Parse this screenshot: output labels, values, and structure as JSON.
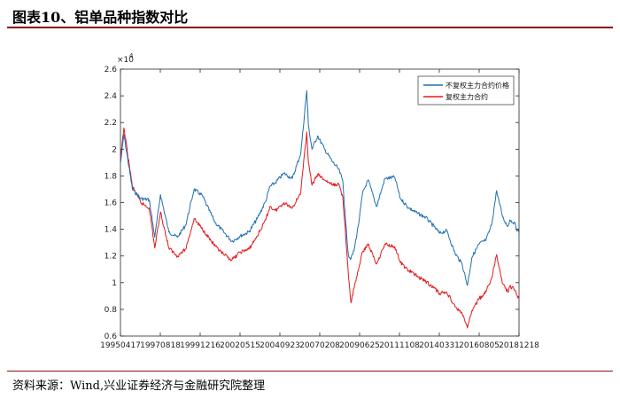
{
  "header": {
    "title": "图表10、铝单品种指数对比"
  },
  "footer": {
    "source": "资料来源：Wind,兴业证券经济与金融研究院整理"
  },
  "chart_data": {
    "type": "line",
    "title": "",
    "xlabel": "",
    "ylabel": "",
    "y_multiplier_label": "×10",
    "y_multiplier_exponent": "4",
    "ylim": [
      0.6,
      2.6
    ],
    "yticks": [
      0.6,
      0.8,
      1,
      1.2,
      1.4,
      1.6,
      1.8,
      2,
      2.2,
      2.4,
      2.6
    ],
    "ytick_labels": [
      "0.6",
      "0.8",
      "1",
      "1.2",
      "1.4",
      "1.6",
      "1.8",
      "2",
      "2.2",
      "2.4",
      "2.6"
    ],
    "xlim": [
      "1995-04-17",
      "2018-12-18"
    ],
    "xtick_labels": [
      "19950417",
      "19970818",
      "19991216",
      "20020515",
      "20040923",
      "20070208",
      "20090625",
      "20111108",
      "20140331",
      "20160805",
      "20181218"
    ],
    "grid": false,
    "legend_position": "top-right",
    "colors": {
      "series1": "#1f6fb4",
      "series2": "#e3191c"
    },
    "series": [
      {
        "name": "不复权主力合约价格",
        "x": [
          "1995-04-17",
          "1995-07-01",
          "1996-01-01",
          "1996-07-01",
          "1997-01-01",
          "1997-05-01",
          "1997-09-01",
          "1998-03-01",
          "1998-09-01",
          "1999-03-01",
          "1999-09-01",
          "2000-03-01",
          "2000-06-01",
          "2000-12-01",
          "2001-06-01",
          "2001-12-01",
          "2002-06-01",
          "2002-12-01",
          "2003-06-01",
          "2003-12-01",
          "2004-03-01",
          "2004-07-01",
          "2005-01-01",
          "2005-07-01",
          "2006-01-01",
          "2006-05-10",
          "2006-06-15",
          "2006-09-01",
          "2007-01-01",
          "2007-06-01",
          "2007-12-01",
          "2008-04-01",
          "2008-07-01",
          "2008-09-01",
          "2008-11-01",
          "2008-12-25",
          "2009-03-01",
          "2009-06-25",
          "2009-09-01",
          "2010-01-01",
          "2010-07-01",
          "2011-01-01",
          "2011-08-01",
          "2011-12-01",
          "2012-06-01",
          "2012-12-01",
          "2013-06-01",
          "2013-12-01",
          "2014-03-31",
          "2014-09-01",
          "2015-03-01",
          "2015-08-01",
          "2015-11-25",
          "2016-03-01",
          "2016-08-05",
          "2017-01-01",
          "2017-05-01",
          "2017-08-20",
          "2017-10-15",
          "2018-01-01",
          "2018-04-15",
          "2018-06-01",
          "2018-09-01",
          "2018-12-18"
        ],
        "values": [
          18900,
          21100,
          17000,
          16300,
          16200,
          13400,
          16600,
          13800,
          13400,
          14300,
          17000,
          16500,
          15800,
          14500,
          13800,
          13100,
          13500,
          13800,
          14800,
          16100,
          17200,
          17500,
          18200,
          17800,
          19700,
          24400,
          21800,
          20000,
          21000,
          20000,
          19000,
          18500,
          17600,
          14500,
          12000,
          11800,
          12400,
          14800,
          16700,
          17700,
          15700,
          17800,
          17900,
          16300,
          15600,
          15200,
          14900,
          14200,
          13700,
          13900,
          12200,
          11400,
          9800,
          11900,
          12900,
          13200,
          14300,
          16900,
          16000,
          14900,
          14200,
          14700,
          14500,
          13700
        ]
      },
      {
        "name": "复权主力合约",
        "x": [
          "1995-04-17",
          "1995-07-01",
          "1996-01-01",
          "1996-07-01",
          "1997-01-01",
          "1997-05-01",
          "1997-09-01",
          "1998-03-01",
          "1998-09-01",
          "1999-03-01",
          "1999-09-01",
          "2000-03-01",
          "2000-06-01",
          "2000-12-01",
          "2001-06-01",
          "2001-12-01",
          "2002-06-01",
          "2002-12-01",
          "2003-06-01",
          "2003-12-01",
          "2004-03-01",
          "2004-07-01",
          "2005-01-01",
          "2005-07-01",
          "2006-01-01",
          "2006-05-10",
          "2006-06-15",
          "2006-09-01",
          "2007-01-01",
          "2007-06-01",
          "2007-12-01",
          "2008-04-01",
          "2008-07-01",
          "2008-09-01",
          "2008-11-01",
          "2008-12-25",
          "2009-03-01",
          "2009-06-25",
          "2009-09-01",
          "2010-01-01",
          "2010-07-01",
          "2011-01-01",
          "2011-08-01",
          "2011-12-01",
          "2012-06-01",
          "2012-12-01",
          "2013-06-01",
          "2013-12-01",
          "2014-03-31",
          "2014-09-01",
          "2015-03-01",
          "2015-08-01",
          "2015-11-25",
          "2016-03-01",
          "2016-08-05",
          "2017-01-01",
          "2017-05-01",
          "2017-08-20",
          "2017-10-15",
          "2018-01-01",
          "2018-04-15",
          "2018-06-01",
          "2018-09-01",
          "2018-12-18"
        ],
        "values": [
          19200,
          21600,
          17200,
          16000,
          15600,
          12600,
          15300,
          12600,
          12000,
          12500,
          14800,
          14000,
          13600,
          12700,
          12100,
          11700,
          12300,
          12500,
          13500,
          14700,
          15700,
          15400,
          16000,
          15600,
          16800,
          21300,
          19000,
          17300,
          18100,
          17700,
          17300,
          17400,
          16400,
          13500,
          10400,
          8500,
          9600,
          11300,
          12300,
          12900,
          11400,
          12900,
          12700,
          11500,
          10900,
          10500,
          10100,
          9600,
          9200,
          9300,
          8200,
          7700,
          6600,
          7900,
          8800,
          9300,
          10300,
          12100,
          11100,
          9900,
          9300,
          9700,
          9500,
          8800
        ]
      }
    ]
  }
}
